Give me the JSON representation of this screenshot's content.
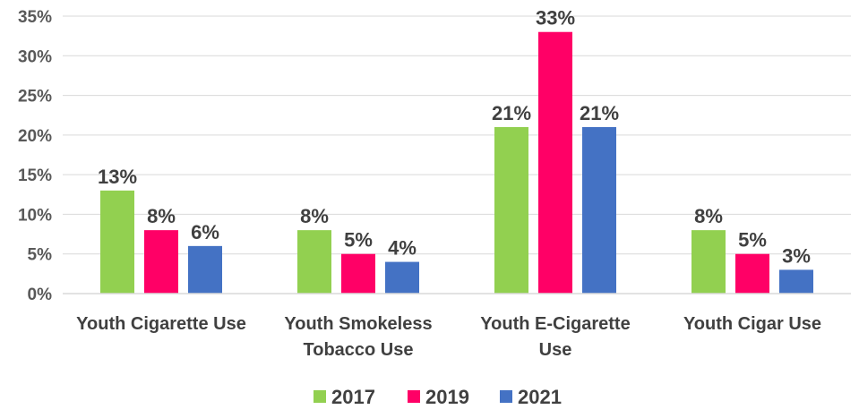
{
  "chart_data": {
    "type": "bar",
    "categories": [
      [
        "Youth Cigarette Use"
      ],
      [
        "Youth Smokeless",
        "Tobacco Use"
      ],
      [
        "Youth E-Cigarette",
        "Use"
      ],
      [
        "Youth Cigar Use"
      ]
    ],
    "series": [
      {
        "name": "2017",
        "color": "#92d050",
        "values": [
          13,
          8,
          21,
          8
        ],
        "labels": [
          "13%",
          "8%",
          "21%",
          "8%"
        ]
      },
      {
        "name": "2019",
        "color": "#ff0066",
        "values": [
          8,
          5,
          33,
          5
        ],
        "labels": [
          "8%",
          "5%",
          "33%",
          "5%"
        ]
      },
      {
        "name": "2021",
        "color": "#4472c4",
        "values": [
          6,
          4,
          21,
          3
        ],
        "labels": [
          "6%",
          "4%",
          "21%",
          "3%"
        ]
      }
    ],
    "title": "",
    "xlabel": "",
    "ylabel": "",
    "ylim": [
      0,
      35
    ],
    "yticks": [
      0,
      5,
      10,
      15,
      20,
      25,
      30,
      35
    ],
    "ytick_labels": [
      "0%",
      "5%",
      "10%",
      "15%",
      "20%",
      "25%",
      "30%",
      "35%"
    ],
    "grid": true,
    "legend_position": "bottom"
  }
}
